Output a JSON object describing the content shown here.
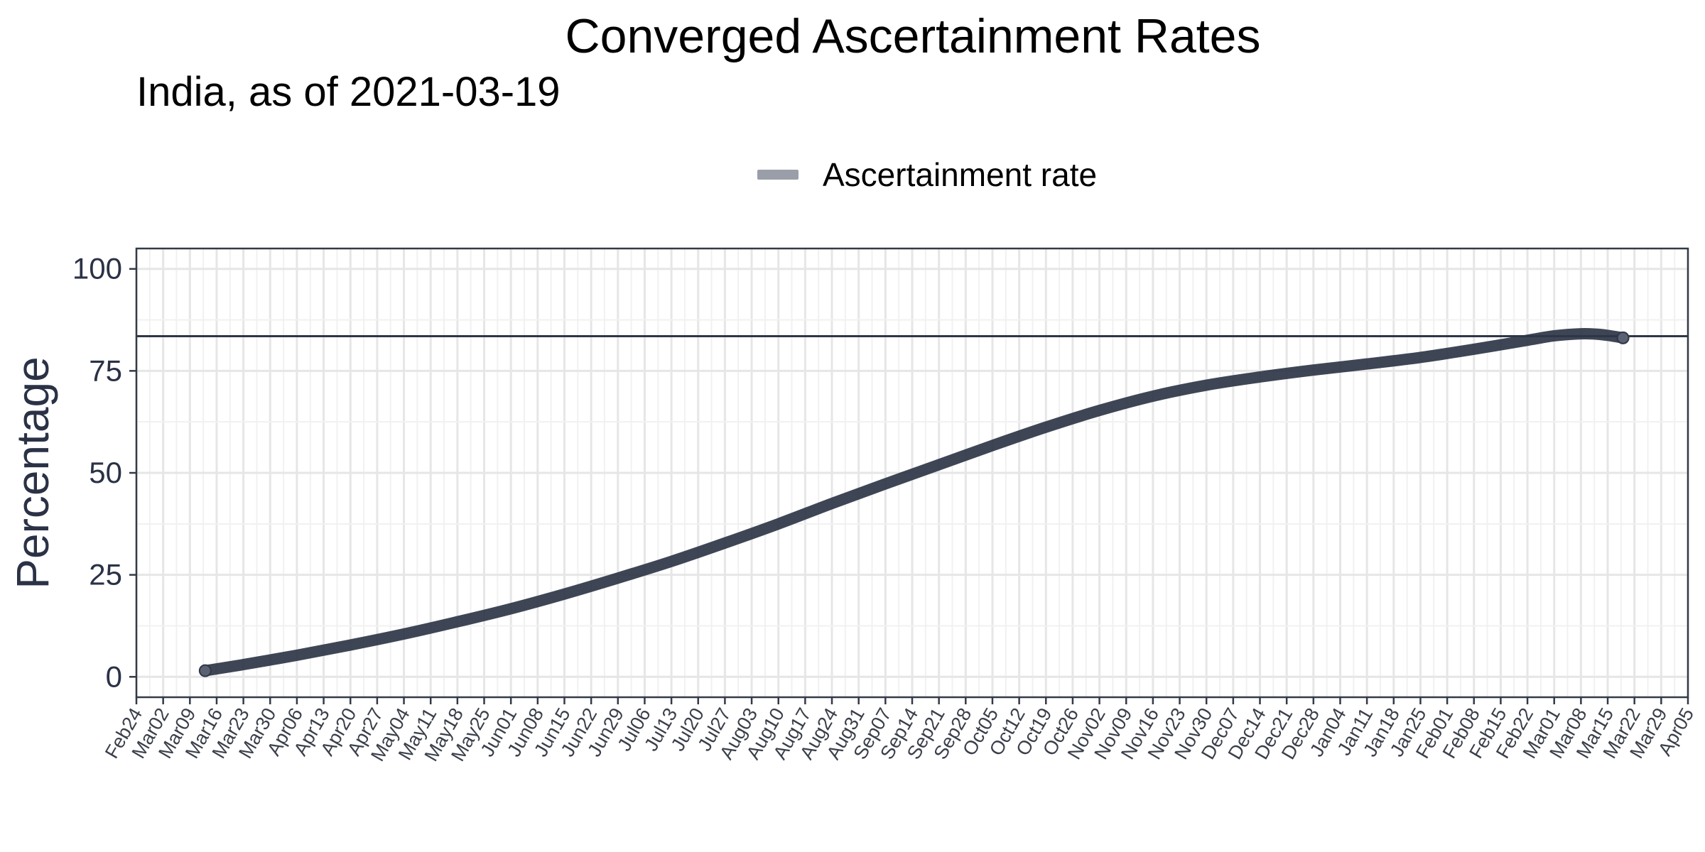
{
  "chart_data": {
    "type": "line",
    "title": "Converged Ascertainment Rates",
    "subtitle": "India, as of 2021-03-19",
    "ylabel": "Percentage",
    "xlabel": "",
    "ylim": [
      -5,
      105
    ],
    "yticks": [
      0,
      25,
      50,
      75,
      100
    ],
    "xlim": [
      "2020-02-24",
      "2021-04-05"
    ],
    "x_tick_labels": [
      "Feb24",
      "Mar02",
      "Mar09",
      "Mar16",
      "Mar23",
      "Mar30",
      "Apr06",
      "Apr13",
      "Apr20",
      "Apr27",
      "May04",
      "May11",
      "May18",
      "May25",
      "Jun01",
      "Jun08",
      "Jun15",
      "Jun22",
      "Jun29",
      "Jul06",
      "Jul13",
      "Jul20",
      "Jul27",
      "Aug03",
      "Aug10",
      "Aug17",
      "Aug24",
      "Aug31",
      "Sep07",
      "Sep14",
      "Sep21",
      "Sep28",
      "Oct05",
      "Oct12",
      "Oct19",
      "Oct26",
      "Nov02",
      "Nov09",
      "Nov16",
      "Nov23",
      "Nov30",
      "Dec07",
      "Dec14",
      "Dec21",
      "Dec28",
      "Jan04",
      "Jan11",
      "Jan18",
      "Jan25",
      "Feb01",
      "Feb08",
      "Feb15",
      "Feb22",
      "Mar01",
      "Mar08",
      "Mar15",
      "Mar22",
      "Mar29",
      "Apr05"
    ],
    "grid": true,
    "legend_position": "top",
    "legend_color": "#9a9ea9",
    "line_color": "#2e3648",
    "hline": {
      "y": 83.5,
      "color": "#2e3648"
    },
    "series": [
      {
        "name": "Ascertainment rate",
        "x": [
          "2020-03-13",
          "2020-03-23",
          "2020-04-06",
          "2020-04-20",
          "2020-05-04",
          "2020-05-18",
          "2020-06-01",
          "2020-06-15",
          "2020-06-29",
          "2020-07-13",
          "2020-07-27",
          "2020-08-10",
          "2020-08-24",
          "2020-09-07",
          "2020-09-21",
          "2020-10-05",
          "2020-10-19",
          "2020-11-02",
          "2020-11-16",
          "2020-11-30",
          "2020-12-14",
          "2020-12-28",
          "2021-01-11",
          "2021-01-25",
          "2021-02-08",
          "2021-02-22",
          "2021-03-01",
          "2021-03-08",
          "2021-03-12",
          "2021-03-15",
          "2021-03-19"
        ],
        "y": [
          1.5,
          3.0,
          5.3,
          7.8,
          10.5,
          13.5,
          16.7,
          20.3,
          24.2,
          28.3,
          32.8,
          37.5,
          42.5,
          47.3,
          52.0,
          56.7,
          61.2,
          65.3,
          68.8,
          71.5,
          73.5,
          75.2,
          76.7,
          78.3,
          80.3,
          82.5,
          83.6,
          84.1,
          84.0,
          83.7,
          83.1
        ]
      }
    ]
  }
}
